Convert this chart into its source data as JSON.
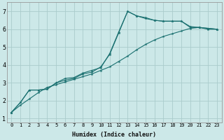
{
  "xlabel": "Humidex (Indice chaleur)",
  "ylabel": "",
  "bg_color": "#cce8e8",
  "grid_color": "#aacccc",
  "line_color": "#1a7070",
  "xlim": [
    -0.5,
    23.5
  ],
  "ylim": [
    0.8,
    7.5
  ],
  "xticks": [
    0,
    1,
    2,
    3,
    4,
    5,
    6,
    7,
    8,
    9,
    10,
    11,
    12,
    13,
    14,
    15,
    16,
    17,
    18,
    19,
    20,
    21,
    22,
    23
  ],
  "yticks": [
    1,
    2,
    3,
    4,
    5,
    6,
    7
  ],
  "line1_x": [
    0,
    1,
    2,
    3,
    4,
    5,
    6,
    7,
    8,
    9,
    10,
    11,
    12,
    13,
    14,
    15,
    16,
    17,
    18,
    19,
    20,
    21,
    22,
    23
  ],
  "line1_y": [
    1.35,
    1.9,
    2.6,
    2.6,
    2.65,
    3.0,
    3.15,
    3.25,
    3.5,
    3.6,
    3.9,
    4.6,
    5.8,
    7.0,
    6.75,
    6.6,
    6.5,
    6.45,
    6.45,
    6.45,
    6.1,
    6.1,
    6.05,
    6.0
  ],
  "line2_x": [
    0,
    1,
    2,
    3,
    4,
    5,
    6,
    7,
    8,
    9,
    10,
    11,
    12,
    13,
    14,
    15,
    16,
    17,
    18,
    19,
    20,
    21,
    22,
    23
  ],
  "line2_y": [
    1.35,
    1.9,
    2.6,
    2.6,
    2.65,
    3.0,
    3.25,
    3.3,
    3.55,
    3.7,
    3.85,
    4.65,
    5.85,
    7.0,
    6.75,
    6.65,
    6.5,
    6.45,
    6.45,
    6.45,
    6.15,
    6.1,
    6.0,
    6.0
  ],
  "line3_x": [
    0,
    1,
    2,
    3,
    4,
    5,
    6,
    7,
    8,
    9,
    10,
    11,
    12,
    13,
    14,
    15,
    16,
    17,
    18,
    19,
    20,
    21,
    22,
    23
  ],
  "line3_y": [
    1.35,
    1.75,
    2.1,
    2.45,
    2.75,
    2.9,
    3.05,
    3.2,
    3.35,
    3.5,
    3.7,
    3.9,
    4.2,
    4.5,
    4.85,
    5.15,
    5.4,
    5.6,
    5.75,
    5.9,
    6.05,
    6.1,
    6.05,
    6.0
  ],
  "xlabel_fontsize": 6,
  "tick_fontsize": 5,
  "marker_size": 3
}
